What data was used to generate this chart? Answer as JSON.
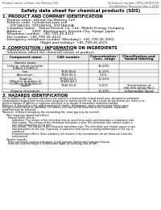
{
  "title": "Safety data sheet for chemical products (SDS)",
  "header_left": "Product name: Lithium Ion Battery Cell",
  "header_right_line1": "Substance number: SDS-LIB-001/10",
  "header_right_line2": "Established / Revision: Dec.1.2010",
  "section1_title": "1. PRODUCT AND COMPANY IDENTIFICATION",
  "section1_lines": [
    "  · Product name: Lithium Ion Battery Cell",
    "  · Product code: Cylindrical-type cell",
    "       SYF18650U, SYF18650L, SYF18650A",
    "  · Company name:   Sanyo Electric Co., Ltd., Mobile Energy Company",
    "  · Address:         2001  Kamimunami, Sumoto-City, Hyogo, Japan",
    "  · Telephone number:  +81-799-26-4111",
    "  · Fax number: +81-799-26-4122",
    "  · Emergency telephone number (Weekday): +81-799-26-3562",
    "                                  (Night and holiday): +81-799-26-4101"
  ],
  "section2_title": "2. COMPOSITION / INFORMATION ON INGREDIENTS",
  "section2_intro": "  · Substance or preparation: Preparation",
  "section2_sub": "  · Information about the chemical nature of product:",
  "section3_title": "3. HAZARDS IDENTIFICATION",
  "section3_body": [
    "For the battery cell, chemical substances are stored in a hermetically sealed metal case, designed to withstand",
    "temperatures ranging from minus-some temperatures during normal use. As a result, during normal use, there is no",
    "physical danger of ignition or explosion and there is no danger of hazardous materials leakage.",
    "However, if exposed to a fire added mechanical shocks, decomposes, enters electro wires it may cause",
    "fire gas release cannot be operated. The battery cell case will be breached at the extreme. Hazardous",
    "materials may be released.",
    "Moreover, if heated strongly by the surrounding fire, some gas may be emitted.",
    "",
    "  ·  Most important hazard and effects:",
    "       Human health effects:",
    "            Inhalation: The release of the electrolyte has an anesthesia action and stimulates a respiratory tract.",
    "            Skin contact: The release of the electrolyte stimulates a skin. The electrolyte skin contact causes a",
    "            sore and stimulation on the skin.",
    "            Eye contact: The release of the electrolyte stimulates eyes. The electrolyte eye contact causes a sore",
    "            and stimulation on the eye. Especially, a substance that causes a strong inflammation of the eye is",
    "            contained.",
    "            Environmental effects: Since a battery cell remains in the environment, do not throw out it into the",
    "            environment.",
    "",
    "  ·  Specific hazards:",
    "       If the electrolyte contacts with water, it will generate detrimental hydrogen fluoride.",
    "       Since the said electrolyte is inflammable liquid, do not bring close to fire."
  ],
  "bg_color": "#ffffff",
  "table_border_color": "#555555"
}
